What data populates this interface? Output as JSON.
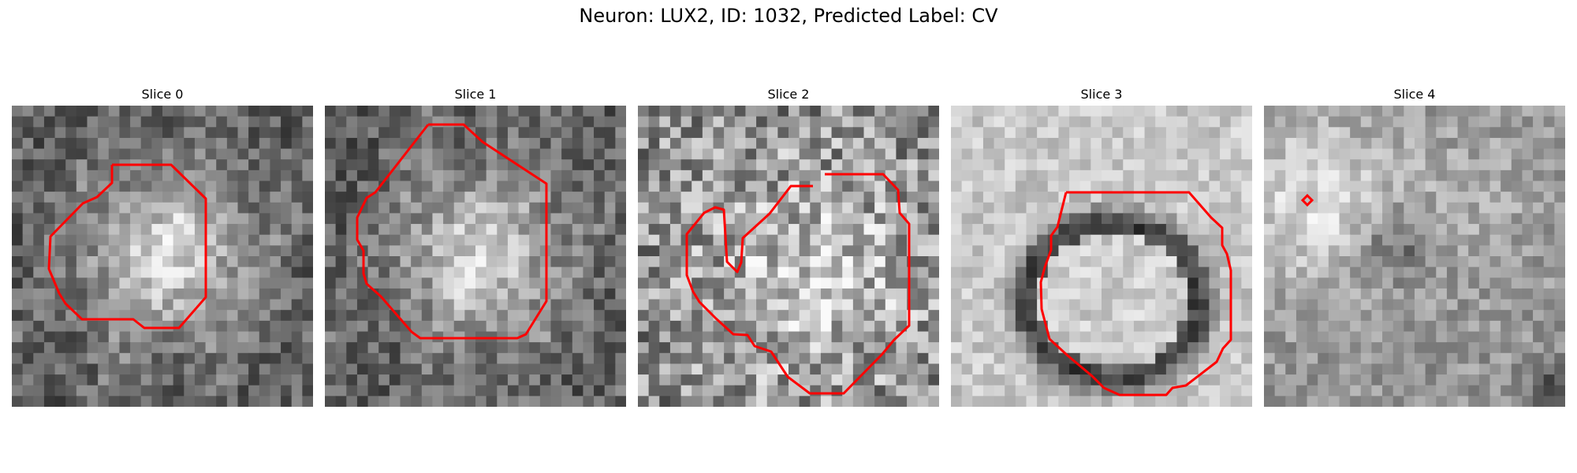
{
  "figure": {
    "title": "Neuron: LUX2, ID: 1032, Predicted Label: CV"
  },
  "panels": [
    {
      "title": "Slice 0",
      "style": "center-bright"
    },
    {
      "title": "Slice 1",
      "style": "center-bright"
    },
    {
      "title": "Slice 2",
      "style": "noisy"
    },
    {
      "title": "Slice 3",
      "style": "ring"
    },
    {
      "title": "Slice 4",
      "style": "left-blob"
    }
  ],
  "contour_color": "#ff0000"
}
